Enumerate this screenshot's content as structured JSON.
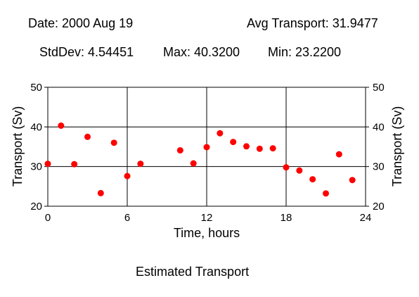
{
  "header": {
    "date": "Date: 2000 Aug 19",
    "avg": "Avg Transport: 31.9477",
    "stddev": "StdDev: 4.54451",
    "max": "Max: 40.3200",
    "min": "Min: 23.2200"
  },
  "footer": {
    "caption": "Estimated Transport"
  },
  "chart_data": {
    "type": "scatter",
    "xlabel": "Time, hours",
    "ylabel": "Transport (Sv)",
    "xlim": [
      0,
      24
    ],
    "ylim": [
      20,
      50
    ],
    "xticks": [
      0,
      6,
      12,
      18,
      24
    ],
    "yticks": [
      20,
      30,
      40,
      50
    ],
    "grid": true,
    "marker_color": "#ff0000",
    "x": [
      0,
      1,
      2,
      3,
      4,
      5,
      6,
      7,
      10,
      11,
      12,
      13,
      14,
      15,
      16,
      17,
      18,
      19,
      20,
      21,
      22,
      23
    ],
    "y": [
      30.7,
      40.32,
      30.6,
      37.5,
      23.3,
      36.0,
      27.6,
      30.7,
      34.1,
      30.8,
      34.9,
      38.4,
      36.2,
      35.1,
      34.5,
      34.6,
      29.8,
      29.0,
      26.8,
      23.22,
      33.1,
      26.6
    ]
  }
}
